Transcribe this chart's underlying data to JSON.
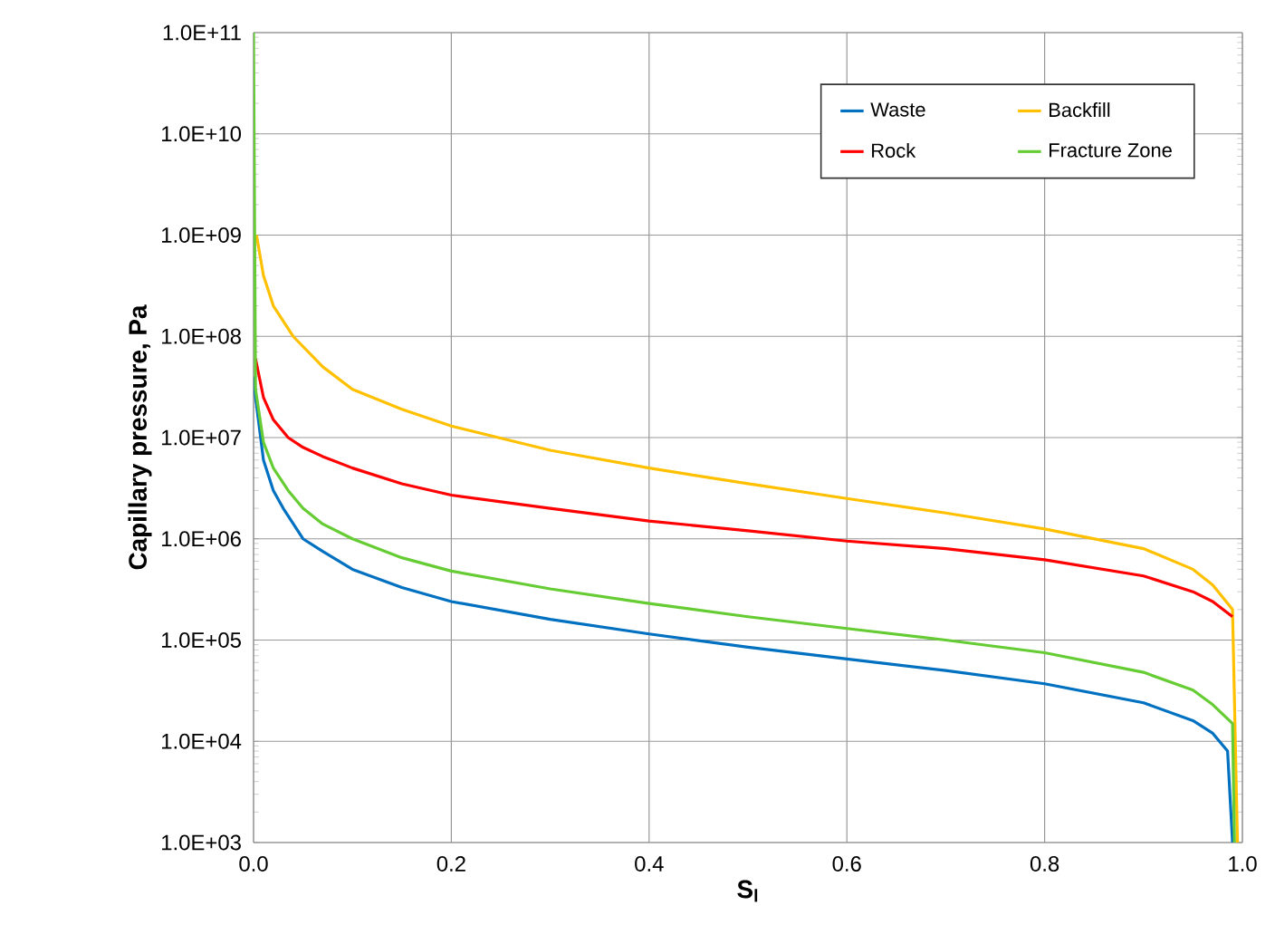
{
  "chart_data": {
    "type": "line",
    "xlabel": "S$_{l}$",
    "ylabel": "Capillary pressure, Pa",
    "log": "y",
    "grid": true,
    "legend": "top right",
    "line_style": "solid",
    "marker": "none",
    "xlim": [
      0,
      1
    ],
    "ylim": [
      1000,
      100000000000
    ],
    "xticks": [
      {
        "value": 0,
        "label": "0.0"
      },
      {
        "value": 0.2,
        "label": "0.2"
      },
      {
        "value": 0.4,
        "label": "0.4"
      },
      {
        "value": 0.6,
        "label": "0.6"
      },
      {
        "value": 0.8,
        "label": "0.8"
      },
      {
        "value": 1,
        "label": "1.0"
      }
    ],
    "yticks": [
      {
        "value": 1000,
        "label": "1.0E+03"
      },
      {
        "value": 10000,
        "label": "1.0E+04"
      },
      {
        "value": 100000,
        "label": "1.0E+05"
      },
      {
        "value": 1000000,
        "label": "1.0E+06"
      },
      {
        "value": 10000000,
        "label": "1.0E+07"
      },
      {
        "value": 100000000,
        "label": "1.0E+08"
      },
      {
        "value": 1000000000,
        "label": "1.0E+09"
      },
      {
        "value": 10000000000,
        "label": "1.0E+10"
      },
      {
        "value": 100000000000,
        "label": "1.0E+11"
      }
    ],
    "series": [
      {
        "name": "Waste",
        "color": "#0070c0",
        "x": [
          0.0,
          0.002,
          0.01,
          0.02,
          0.03,
          0.05,
          0.07,
          0.1,
          0.15,
          0.2,
          0.3,
          0.4,
          0.5,
          0.6,
          0.7,
          0.8,
          0.9,
          0.95,
          0.97,
          0.985,
          0.99
        ],
        "values": [
          40000000,
          25000000,
          6000000,
          3000000,
          2000000,
          1000000,
          750000,
          500000,
          330000,
          240000,
          160000,
          115000,
          85000,
          65000,
          50000,
          37000,
          24000,
          16000,
          12000,
          8000,
          1000
        ]
      },
      {
        "name": "Backfill",
        "color": "#ffc000",
        "x": [
          0.003,
          0.01,
          0.02,
          0.04,
          0.07,
          0.1,
          0.15,
          0.2,
          0.3,
          0.4,
          0.5,
          0.6,
          0.7,
          0.8,
          0.9,
          0.95,
          0.97,
          0.99,
          0.995
        ],
        "values": [
          1000000000,
          400000000,
          200000000,
          100000000,
          50000000,
          30000000,
          19000000,
          13000000,
          7500000,
          5000000,
          3500000,
          2500000,
          1800000,
          1250000,
          800000,
          500000,
          350000,
          200000,
          1000
        ]
      },
      {
        "name": "Rock",
        "color": "#ff0000",
        "x": [
          0.002,
          0.01,
          0.02,
          0.035,
          0.05,
          0.07,
          0.1,
          0.15,
          0.2,
          0.3,
          0.4,
          0.5,
          0.6,
          0.7,
          0.8,
          0.9,
          0.95,
          0.97,
          0.99
        ],
        "values": [
          60000000,
          25000000,
          15000000,
          10000000,
          8000000,
          6500000,
          5000000,
          3500000,
          2700000,
          2000000,
          1500000,
          1200000,
          950000,
          800000,
          620000,
          430000,
          300000,
          240000,
          170000
        ]
      },
      {
        "name": "Fracture Zone",
        "color": "#66cc33",
        "x": [
          0.0,
          0.002,
          0.01,
          0.02,
          0.035,
          0.05,
          0.07,
          0.1,
          0.15,
          0.2,
          0.3,
          0.4,
          0.5,
          0.6,
          0.7,
          0.8,
          0.9,
          0.95,
          0.97,
          0.99,
          0.992
        ],
        "values": [
          100000000000,
          30000000,
          9000000,
          5000000,
          3000000,
          2000000,
          1400000,
          1000000,
          650000,
          480000,
          320000,
          230000,
          170000,
          130000,
          100000,
          75000,
          48000,
          32000,
          23000,
          15000,
          1000
        ]
      }
    ]
  }
}
